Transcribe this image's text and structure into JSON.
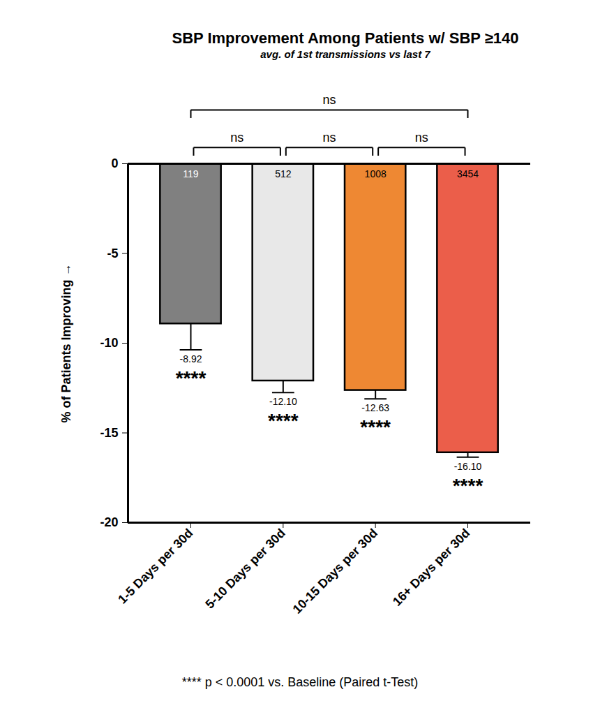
{
  "chart_data": {
    "type": "bar",
    "title": "SBP Improvement Among Patients w/ SBP ≥140",
    "subtitle": "avg. of 1st transmissions vs last 7",
    "y_label": "% of Patients Improving",
    "categories": [
      "1-5 Days per 30d",
      "5-10 Days per 30d",
      "10-15 Days per 30d",
      "16+ Days per 30d"
    ],
    "values": [
      -8.92,
      -12.1,
      -12.63,
      -16.1
    ],
    "value_labels": [
      "-8.92",
      "-12.10",
      "-12.63",
      "-16.10"
    ],
    "errors": [
      1.45,
      0.65,
      0.47,
      0.25
    ],
    "sample_sizes": [
      119,
      512,
      1008,
      3454
    ],
    "significance": [
      "****",
      "****",
      "****",
      "****"
    ],
    "comparisons": [
      {
        "between": [
          "1-5 Days per 30d",
          "5-10 Days per 30d"
        ],
        "label": "ns"
      },
      {
        "between": [
          "5-10 Days per 30d",
          "10-15 Days per 30d"
        ],
        "label": "ns"
      },
      {
        "between": [
          "10-15 Days per 30d",
          "16+ Days per 30d"
        ],
        "label": "ns"
      },
      {
        "between": [
          "1-5 Days per 30d",
          "16+ Days per 30d"
        ],
        "label": "ns"
      }
    ],
    "footnote": "**** p < 0.0001 vs. Baseline (Paired t-Test)",
    "colors": [
      "#808080",
      "#e8e8e8",
      "#ee8833",
      "#eb5e4a"
    ],
    "ylim": [
      -20,
      0
    ],
    "yticks": [
      -20,
      -15,
      -10,
      -5,
      0
    ],
    "grid": false,
    "data_labels": true
  }
}
